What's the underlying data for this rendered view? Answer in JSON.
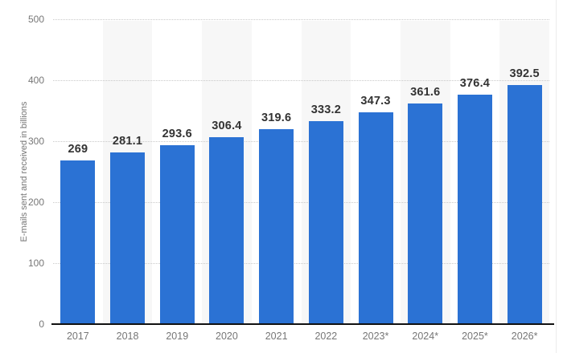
{
  "chart_data": {
    "type": "bar",
    "title": "",
    "ylabel": "E-mails sent and received in billions",
    "xlabel": "",
    "categories": [
      "2017",
      "2018",
      "2019",
      "2020",
      "2021",
      "2022",
      "2023*",
      "2024*",
      "2025*",
      "2026*"
    ],
    "values": [
      269,
      281.1,
      293.6,
      306.4,
      319.6,
      333.2,
      347.3,
      361.6,
      376.4,
      392.5
    ],
    "value_labels": [
      "269",
      "281.1",
      "293.6",
      "306.4",
      "319.6",
      "333.2",
      "347.3",
      "361.6",
      "376.4",
      "392.5"
    ],
    "ylim": [
      0,
      500
    ],
    "yticks": [
      0,
      100,
      200,
      300,
      400,
      500
    ],
    "grid": "horizontal-dotted",
    "legend": "none",
    "colors": {
      "bar": "#2b72d4",
      "stripe": "#f7f7f7",
      "value_label": "#333333",
      "tick_label": "#767676",
      "axis_line": "#111111",
      "gridline": "#c9c9c9",
      "background": "#ffffff"
    }
  }
}
